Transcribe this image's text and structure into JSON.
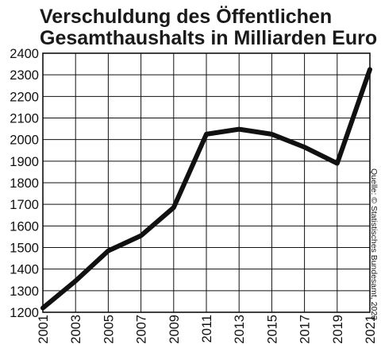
{
  "chart_data": {
    "type": "line",
    "title_lines": [
      "Verschuldung des Öffentlichen",
      "Gesamthaushalts in Milliarden Euro"
    ],
    "source": "Quelle: © Statistisches Bundesamt, 2023",
    "x": [
      2001,
      2003,
      2005,
      2007,
      2009,
      2011,
      2013,
      2015,
      2017,
      2019,
      2021
    ],
    "x_tick_labels": [
      "2001",
      "2003",
      "2005",
      "2007",
      "2009",
      "2011",
      "2013",
      "2015",
      "2017",
      "2019",
      "2021"
    ],
    "y_tick_labels": [
      "1200",
      "1300",
      "1400",
      "1500",
      "1600",
      "1700",
      "1800",
      "1900",
      "2000",
      "2100",
      "2200",
      "2300",
      "2400"
    ],
    "ylim": [
      1200,
      2400
    ],
    "xlim": [
      2001,
      2021
    ],
    "grid": true,
    "series": [
      {
        "values": [
          1220,
          1345,
          1485,
          1555,
          1685,
          2025,
          2048,
          2025,
          1965,
          1890,
          2325
        ],
        "color": "#111111"
      }
    ]
  },
  "colors": {
    "line": "#111111",
    "grid": "#111111",
    "background": "#ffffff"
  }
}
